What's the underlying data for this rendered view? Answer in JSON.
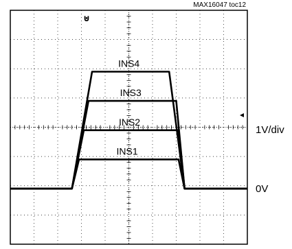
{
  "figure_id": "MAX16047 toc12",
  "marker_symbol": "⊍",
  "chart_data": {
    "type": "line",
    "title": "",
    "xlabel": "",
    "ylabel": "",
    "scale_label": "1V/div",
    "zero_label": "0V",
    "grid": true,
    "grid_divisions": {
      "x": 10,
      "y": 8
    },
    "units": {
      "x": "div",
      "y": "V"
    },
    "ylim": [
      -1.9,
      6.1
    ],
    "xlim": [
      0,
      10
    ],
    "trace_color": "#000000",
    "series": [
      {
        "name": "INS1",
        "x": [
          0,
          2.6,
          2.9,
          7.1,
          7.35,
          10
        ],
        "y": [
          0,
          0,
          1.0,
          1.0,
          0,
          0
        ]
      },
      {
        "name": "INS2",
        "x": [
          0,
          2.6,
          3.1,
          7.1,
          7.35,
          10
        ],
        "y": [
          0,
          0,
          2.0,
          2.0,
          0,
          0
        ]
      },
      {
        "name": "INS3",
        "x": [
          0,
          2.6,
          3.3,
          7.0,
          7.35,
          10
        ],
        "y": [
          0,
          0,
          3.0,
          3.0,
          0,
          0
        ]
      },
      {
        "name": "INS4",
        "x": [
          0,
          2.6,
          3.45,
          6.7,
          7.35,
          10
        ],
        "y": [
          0,
          0,
          4.0,
          4.0,
          0,
          0
        ]
      }
    ]
  }
}
